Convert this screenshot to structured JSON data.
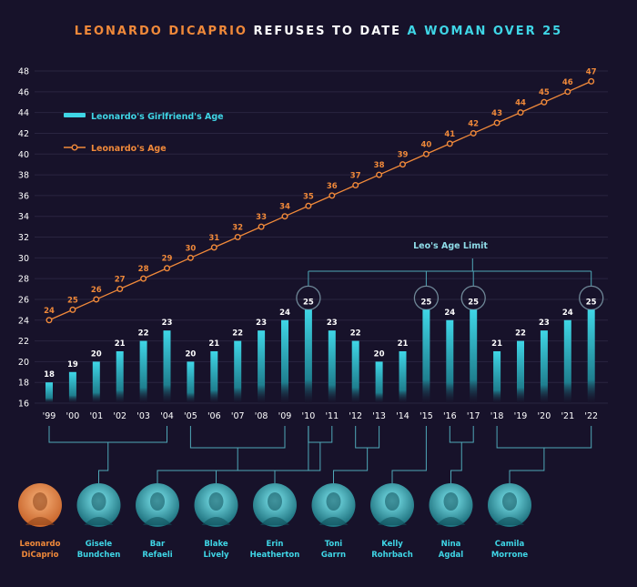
{
  "title": {
    "part1": "LEONARDO DICAPRIO",
    "part2": " REFUSES TO DATE ",
    "part3": "A WOMAN OVER 25"
  },
  "colors": {
    "background": "#17122a",
    "orange": "#f0893a",
    "cyan": "#3fd6e6",
    "grid": "#2a2540",
    "connector": "#4fa8b8"
  },
  "annotation": "Leo's Age Limit",
  "chart_data": {
    "type": "bar+line",
    "categories": [
      "'99",
      "'00",
      "'01",
      "'02",
      "'03",
      "'04",
      "'05",
      "'06",
      "'07",
      "'08",
      "'09",
      "'10",
      "'11",
      "'12",
      "'13",
      "'14",
      "'15",
      "'16",
      "'17",
      "'18",
      "'19",
      "'20",
      "'21",
      "'22"
    ],
    "series": [
      {
        "name": "Leonardo's Girlfriend's Age",
        "type": "bar",
        "values": [
          18,
          19,
          20,
          21,
          22,
          23,
          20,
          21,
          22,
          23,
          24,
          25,
          23,
          22,
          20,
          21,
          25,
          24,
          25,
          21,
          22,
          23,
          24,
          25
        ]
      },
      {
        "name": "Leonardo's Age",
        "type": "line",
        "values": [
          24,
          25,
          26,
          27,
          28,
          29,
          30,
          31,
          32,
          33,
          34,
          35,
          36,
          37,
          38,
          39,
          40,
          41,
          42,
          43,
          44,
          45,
          46,
          47
        ]
      }
    ],
    "yticks": [
      16,
      18,
      20,
      22,
      24,
      26,
      28,
      30,
      32,
      34,
      36,
      38,
      40,
      42,
      44,
      46,
      48
    ],
    "ylim": [
      16,
      48
    ],
    "limit_value": 25,
    "legend": [
      "Leonardo's Girlfriend's Age",
      "Leonardo's Age"
    ]
  },
  "people": [
    {
      "name_lines": [
        "Leonardo",
        "DiCaprio"
      ],
      "highlight": true,
      "range": null
    },
    {
      "name_lines": [
        "Gisele",
        "Bundchen"
      ],
      "highlight": false,
      "range": [
        0,
        5
      ]
    },
    {
      "name_lines": [
        "Bar",
        "Refaeli"
      ],
      "highlight": false,
      "range": [
        6,
        10
      ]
    },
    {
      "name_lines": [
        "Blake",
        "Lively"
      ],
      "highlight": false,
      "range": [
        11,
        11
      ]
    },
    {
      "name_lines": [
        "Erin",
        "Heatherton"
      ],
      "highlight": false,
      "range": [
        11,
        12
      ]
    },
    {
      "name_lines": [
        "Toni",
        "Garrn"
      ],
      "highlight": false,
      "range": [
        13,
        14
      ]
    },
    {
      "name_lines": [
        "Kelly",
        "Rohrbach"
      ],
      "highlight": false,
      "range": [
        16,
        16
      ]
    },
    {
      "name_lines": [
        "Nina",
        "Agdal"
      ],
      "highlight": false,
      "range": [
        17,
        18
      ]
    },
    {
      "name_lines": [
        "Camila",
        "Morrone"
      ],
      "highlight": false,
      "range": [
        19,
        23
      ]
    }
  ]
}
